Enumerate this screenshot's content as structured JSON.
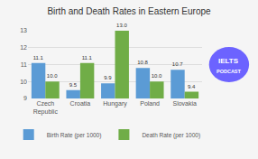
{
  "chart_data": {
    "type": "bar",
    "title": "Birth and Death Rates in Eastern Europe",
    "categories": [
      "Czech\nRepublic",
      "Croatia",
      "Hungary",
      "Poland",
      "Slovakia"
    ],
    "series": [
      {
        "name": "Birth Rate (per 1000)",
        "color": "#5b9bd5",
        "values": [
          11.1,
          9.5,
          9.9,
          10.8,
          10.7
        ],
        "value_labels": [
          "11.1",
          "9.5",
          "9.9",
          "10.8",
          "10.7"
        ]
      },
      {
        "name": "Death Rate (per 1000)",
        "color": "#70ad47",
        "values": [
          10.0,
          11.1,
          13.0,
          10.0,
          9.4
        ],
        "value_labels": [
          "10.0",
          "11.1",
          "13.0",
          "10.0",
          "9.4"
        ]
      }
    ],
    "ylim": [
      9,
      13
    ],
    "yticks": [
      9,
      10,
      11,
      12,
      13
    ],
    "grid": true,
    "legend": "bottom",
    "data_labels": true,
    "annotations": [
      "IELTS",
      "PODCAST"
    ]
  }
}
